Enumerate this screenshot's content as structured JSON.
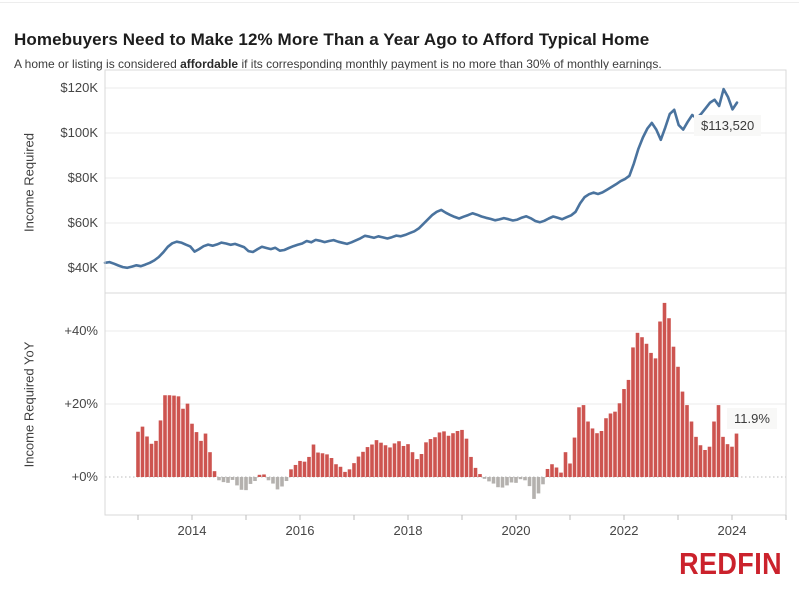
{
  "header": {
    "title": "Homebuyers Need to Make 12% More Than a Year Ago to Afford Typical Home",
    "subtitle_prefix": "A home or listing is considered ",
    "subtitle_bold": "affordable",
    "subtitle_suffix": " if its corresponding monthly payment is no more than 30% of monthly earnings."
  },
  "income_panel": {
    "axis_title": "Income Required",
    "annotation": "$113,520",
    "y_ticks": [
      {
        "label": "$120K",
        "value": 120
      },
      {
        "label": "$100K",
        "value": 100
      },
      {
        "label": "$80K",
        "value": 80
      },
      {
        "label": "$60K",
        "value": 60
      },
      {
        "label": "$40K",
        "value": 40
      }
    ]
  },
  "yoy_panel": {
    "axis_title": "Income Required YoY",
    "annotation": "11.9%",
    "y_ticks": [
      {
        "label": "+40%",
        "value": 40
      },
      {
        "label": "+20%",
        "value": 20
      },
      {
        "label": "+0%",
        "value": 0
      }
    ]
  },
  "x_axis": {
    "labeled_years": [
      2014,
      2016,
      2018,
      2020,
      2022,
      2024
    ],
    "tick_years": [
      2013,
      2014,
      2015,
      2016,
      2017,
      2018,
      2019,
      2020,
      2021,
      2022,
      2023,
      2024,
      2025
    ]
  },
  "footer": {
    "logo_text": "REDFIN"
  },
  "colors": {
    "line": "#4a739e",
    "bar_positive": "#cd5450",
    "bar_negative": "#b4b1ae",
    "gridline": "#ebebeb",
    "panel_border": "#d9d9d9",
    "zero_dotted": "#bdbdbd",
    "tick_mark": "#bdbdbd",
    "logo_red": "#cb222c"
  },
  "chart_data": [
    {
      "type": "line",
      "panel": "top",
      "title": "Income Required",
      "ylabel": "Income Required",
      "ylim": [
        32,
        128
      ],
      "unit": "USD thousands (annual income required)",
      "frequency": "monthly",
      "start_month": "2012-05",
      "end_month": "2024-02",
      "last_point_label": "$113,520",
      "values": [
        42.3,
        42.6,
        41.9,
        41.1,
        40.4,
        40.1,
        40.6,
        41.2,
        40.8,
        41.5,
        42.3,
        43.4,
        44.9,
        47.0,
        49.4,
        51.0,
        51.7,
        51.3,
        50.4,
        49.6,
        47.3,
        48.4,
        49.7,
        50.4,
        49.9,
        50.5,
        51.3,
        50.9,
        50.3,
        50.7,
        50.0,
        49.3,
        47.5,
        47.1,
        48.3,
        49.4,
        48.9,
        48.4,
        49.0,
        47.7,
        48.0,
        48.9,
        49.7,
        50.3,
        50.9,
        52.0,
        51.4,
        52.5,
        52.1,
        51.5,
        52.0,
        52.4,
        51.7,
        51.2,
        50.7,
        51.4,
        52.3,
        53.2,
        54.3,
        53.9,
        53.4,
        54.1,
        53.6,
        53.1,
        53.7,
        54.4,
        54.1,
        54.7,
        55.5,
        56.3,
        57.6,
        59.5,
        61.5,
        63.5,
        65.0,
        65.8,
        64.6,
        63.6,
        62.7,
        62.0,
        62.8,
        63.5,
        64.3,
        63.7,
        62.9,
        62.3,
        61.8,
        61.2,
        61.6,
        62.2,
        61.7,
        61.1,
        61.5,
        62.4,
        63.0,
        62.1,
        60.9,
        60.3,
        61.0,
        62.0,
        62.9,
        62.3,
        61.7,
        62.6,
        63.4,
        65.0,
        68.7,
        71.5,
        72.8,
        73.5,
        72.9,
        73.6,
        74.8,
        76.0,
        77.2,
        78.6,
        79.5,
        81.0,
        86.5,
        93.0,
        98.0,
        102.0,
        104.5,
        101.5,
        97.0,
        102.5,
        108.5,
        110.3,
        103.5,
        101.5,
        105.0,
        108.0,
        106.5,
        108.5,
        111.0,
        113.5,
        114.8,
        112.0,
        119.5,
        116.0,
        110.5,
        113.52
      ]
    },
    {
      "type": "bar",
      "panel": "bottom",
      "title": "Income Required YoY",
      "ylabel": "Income Required YoY",
      "ylim": [
        -10,
        50
      ],
      "unit": "percent year-over-year",
      "frequency": "monthly",
      "start_month": "2013-01",
      "end_month": "2024-02",
      "last_point_label": "11.9%",
      "values": [
        12.4,
        13.8,
        11.1,
        9.1,
        9.9,
        15.5,
        22.4,
        22.4,
        22.3,
        22.1,
        18.7,
        20.1,
        14.6,
        12.3,
        9.9,
        11.9,
        6.8,
        1.6,
        -0.9,
        -1.4,
        -1.6,
        -0.8,
        -2.3,
        -3.5,
        -3.6,
        -1.9,
        -1.1,
        0.6,
        0.7,
        -0.9,
        -1.8,
        -3.4,
        -2.6,
        -1.1,
        2.1,
        3.3,
        4.4,
        4.2,
        5.5,
        8.9,
        6.7,
        6.5,
        6.2,
        5.2,
        3.5,
        2.8,
        1.4,
        2.1,
        3.8,
        5.6,
        6.9,
        8.2,
        8.9,
        10.1,
        9.4,
        8.7,
        8.1,
        9.2,
        9.8,
        8.5,
        9.0,
        6.8,
        4.9,
        6.3,
        9.5,
        10.4,
        10.9,
        12.2,
        12.5,
        11.3,
        12.0,
        12.6,
        12.9,
        10.5,
        5.5,
        2.5,
        0.8,
        -0.5,
        -1.2,
        -1.8,
        -2.8,
        -2.9,
        -2.3,
        -1.5,
        -1.6,
        -0.6,
        -0.9,
        -2.5,
        -6.0,
        -4.5,
        -2.0,
        2.2,
        3.5,
        2.6,
        1.2,
        6.8,
        3.7,
        10.8,
        19.1,
        19.7,
        15.2,
        13.3,
        12.0,
        12.6,
        16.1,
        17.4,
        17.9,
        20.2,
        24.1,
        26.6,
        35.5,
        39.5,
        38.3,
        36.5,
        34.0,
        32.5,
        42.6,
        47.7,
        43.5,
        35.7,
        30.2,
        23.4,
        19.7,
        15.2,
        11.0,
        8.7,
        7.4,
        8.3,
        15.2,
        19.7,
        11.0,
        9.0,
        8.3,
        11.9
      ]
    }
  ]
}
